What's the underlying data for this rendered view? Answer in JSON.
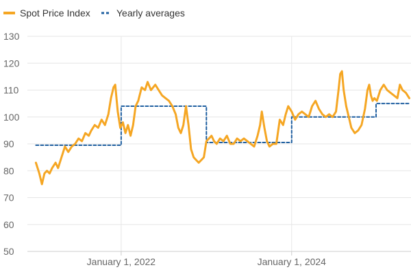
{
  "chart_data": {
    "type": "line",
    "title": "",
    "xlabel": "",
    "ylabel": "",
    "ylim": [
      50,
      130
    ],
    "yticks": [
      50,
      60,
      70,
      80,
      90,
      100,
      110,
      120,
      130
    ],
    "xlim": [
      2020.9,
      2025.4
    ],
    "xticks": [
      {
        "x": 2022,
        "label": "January 1, 2022"
      },
      {
        "x": 2024,
        "label": "January 1, 2024"
      }
    ],
    "grid": true,
    "legend_position": "top-left",
    "colors": {
      "spot": "#f5a623",
      "avg": "#1f5fa0",
      "grid": "#e6e6e6",
      "axis": "#cccccc"
    },
    "series": [
      {
        "name": "Spot Price Index",
        "style": "solid",
        "points": [
          [
            2021.0,
            83
          ],
          [
            2021.04,
            79
          ],
          [
            2021.07,
            75
          ],
          [
            2021.1,
            79
          ],
          [
            2021.13,
            80
          ],
          [
            2021.16,
            79
          ],
          [
            2021.19,
            81
          ],
          [
            2021.23,
            83
          ],
          [
            2021.26,
            81
          ],
          [
            2021.3,
            85
          ],
          [
            2021.34,
            89
          ],
          [
            2021.38,
            87
          ],
          [
            2021.42,
            89
          ],
          [
            2021.46,
            90
          ],
          [
            2021.5,
            92
          ],
          [
            2021.54,
            91
          ],
          [
            2021.58,
            94
          ],
          [
            2021.62,
            93
          ],
          [
            2021.65,
            95
          ],
          [
            2021.69,
            97
          ],
          [
            2021.73,
            96
          ],
          [
            2021.77,
            99
          ],
          [
            2021.81,
            97
          ],
          [
            2021.85,
            101
          ],
          [
            2021.88,
            107
          ],
          [
            2021.91,
            111
          ],
          [
            2021.93,
            112
          ],
          [
            2021.96,
            102
          ],
          [
            2021.99,
            96
          ],
          [
            2022.02,
            98
          ],
          [
            2022.05,
            94
          ],
          [
            2022.08,
            97
          ],
          [
            2022.11,
            93
          ],
          [
            2022.14,
            97
          ],
          [
            2022.17,
            104
          ],
          [
            2022.2,
            106
          ],
          [
            2022.24,
            111
          ],
          [
            2022.28,
            110
          ],
          [
            2022.31,
            113
          ],
          [
            2022.35,
            110
          ],
          [
            2022.4,
            112
          ],
          [
            2022.44,
            110
          ],
          [
            2022.48,
            108
          ],
          [
            2022.52,
            107
          ],
          [
            2022.56,
            106
          ],
          [
            2022.6,
            104
          ],
          [
            2022.64,
            101
          ],
          [
            2022.67,
            96
          ],
          [
            2022.7,
            94
          ],
          [
            2022.73,
            97
          ],
          [
            2022.76,
            104
          ],
          [
            2022.79,
            97
          ],
          [
            2022.82,
            88
          ],
          [
            2022.85,
            85
          ],
          [
            2022.88,
            84
          ],
          [
            2022.91,
            83
          ],
          [
            2022.94,
            84
          ],
          [
            2022.97,
            85
          ],
          [
            2023.0,
            91
          ],
          [
            2023.03,
            92
          ],
          [
            2023.06,
            93
          ],
          [
            2023.09,
            91
          ],
          [
            2023.12,
            90
          ],
          [
            2023.16,
            92
          ],
          [
            2023.2,
            91
          ],
          [
            2023.24,
            93
          ],
          [
            2023.28,
            90
          ],
          [
            2023.32,
            90
          ],
          [
            2023.36,
            92
          ],
          [
            2023.4,
            91
          ],
          [
            2023.44,
            92
          ],
          [
            2023.48,
            91
          ],
          [
            2023.52,
            90
          ],
          [
            2023.56,
            89
          ],
          [
            2023.6,
            93
          ],
          [
            2023.63,
            97
          ],
          [
            2023.65,
            102
          ],
          [
            2023.68,
            96
          ],
          [
            2023.71,
            91
          ],
          [
            2023.74,
            89
          ],
          [
            2023.78,
            90
          ],
          [
            2023.82,
            90
          ],
          [
            2023.86,
            99
          ],
          [
            2023.9,
            97
          ],
          [
            2023.93,
            101
          ],
          [
            2023.96,
            104
          ],
          [
            2024.0,
            102
          ],
          [
            2024.04,
            99
          ],
          [
            2024.08,
            101
          ],
          [
            2024.12,
            102
          ],
          [
            2024.16,
            101
          ],
          [
            2024.2,
            100
          ],
          [
            2024.24,
            104
          ],
          [
            2024.28,
            106
          ],
          [
            2024.32,
            103
          ],
          [
            2024.36,
            101
          ],
          [
            2024.4,
            100
          ],
          [
            2024.44,
            101
          ],
          [
            2024.48,
            100
          ],
          [
            2024.52,
            102
          ],
          [
            2024.55,
            110
          ],
          [
            2024.57,
            116
          ],
          [
            2024.59,
            117
          ],
          [
            2024.61,
            110
          ],
          [
            2024.64,
            104
          ],
          [
            2024.67,
            100
          ],
          [
            2024.7,
            96
          ],
          [
            2024.74,
            94
          ],
          [
            2024.78,
            95
          ],
          [
            2024.82,
            97
          ],
          [
            2024.86,
            103
          ],
          [
            2024.89,
            110
          ],
          [
            2024.91,
            112
          ],
          [
            2024.93,
            108
          ],
          [
            2024.95,
            106
          ],
          [
            2024.97,
            107
          ],
          [
            2025.0,
            106
          ],
          [
            2025.04,
            110
          ],
          [
            2025.08,
            112
          ],
          [
            2025.12,
            110
          ],
          [
            2025.16,
            109
          ],
          [
            2025.2,
            108
          ],
          [
            2025.24,
            107
          ],
          [
            2025.27,
            112
          ],
          [
            2025.3,
            110
          ],
          [
            2025.34,
            109
          ],
          [
            2025.38,
            107
          ]
        ]
      },
      {
        "name": "Yearly averages",
        "style": "dashed",
        "points": [
          [
            2021.0,
            89.5
          ],
          [
            2022.0,
            89.5
          ],
          [
            2022.0,
            104
          ],
          [
            2023.0,
            104
          ],
          [
            2023.0,
            90.5
          ],
          [
            2024.0,
            90.5
          ],
          [
            2024.0,
            100
          ],
          [
            2024.99,
            100
          ],
          [
            2024.99,
            105
          ],
          [
            2025.38,
            105
          ]
        ]
      }
    ]
  }
}
